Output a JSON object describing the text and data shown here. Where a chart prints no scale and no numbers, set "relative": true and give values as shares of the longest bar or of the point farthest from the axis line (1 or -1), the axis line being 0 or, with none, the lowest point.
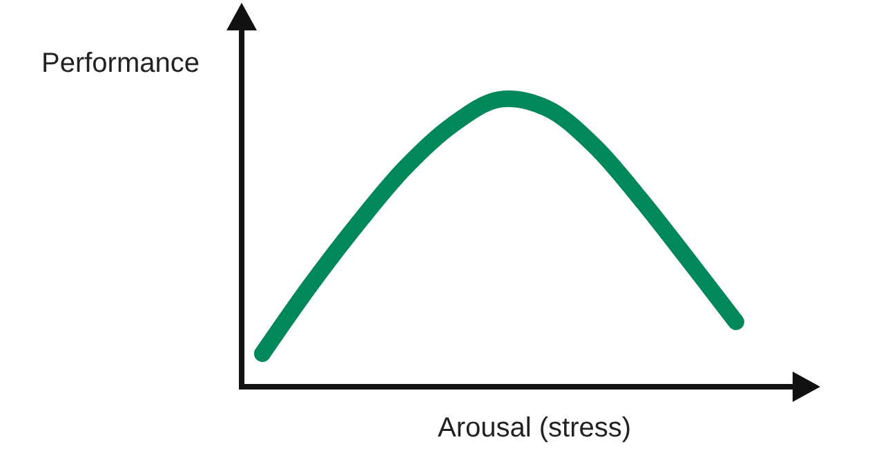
{
  "chart_data": {
    "type": "line",
    "relative": true,
    "xlabel": "Arousal (stress)",
    "ylabel": "Performance",
    "categories": [
      null,
      null,
      null,
      null,
      null,
      null,
      null,
      null,
      null,
      null,
      null
    ],
    "series": [
      {
        "color": "#00875a",
        "values": [
          0.115,
          0.35,
          0.565,
          0.76,
          0.91,
          1,
          0.97,
          0.84,
          0.65,
          0.44,
          0.226
        ]
      }
    ],
    "marker": "none",
    "line_style": "solid"
  }
}
